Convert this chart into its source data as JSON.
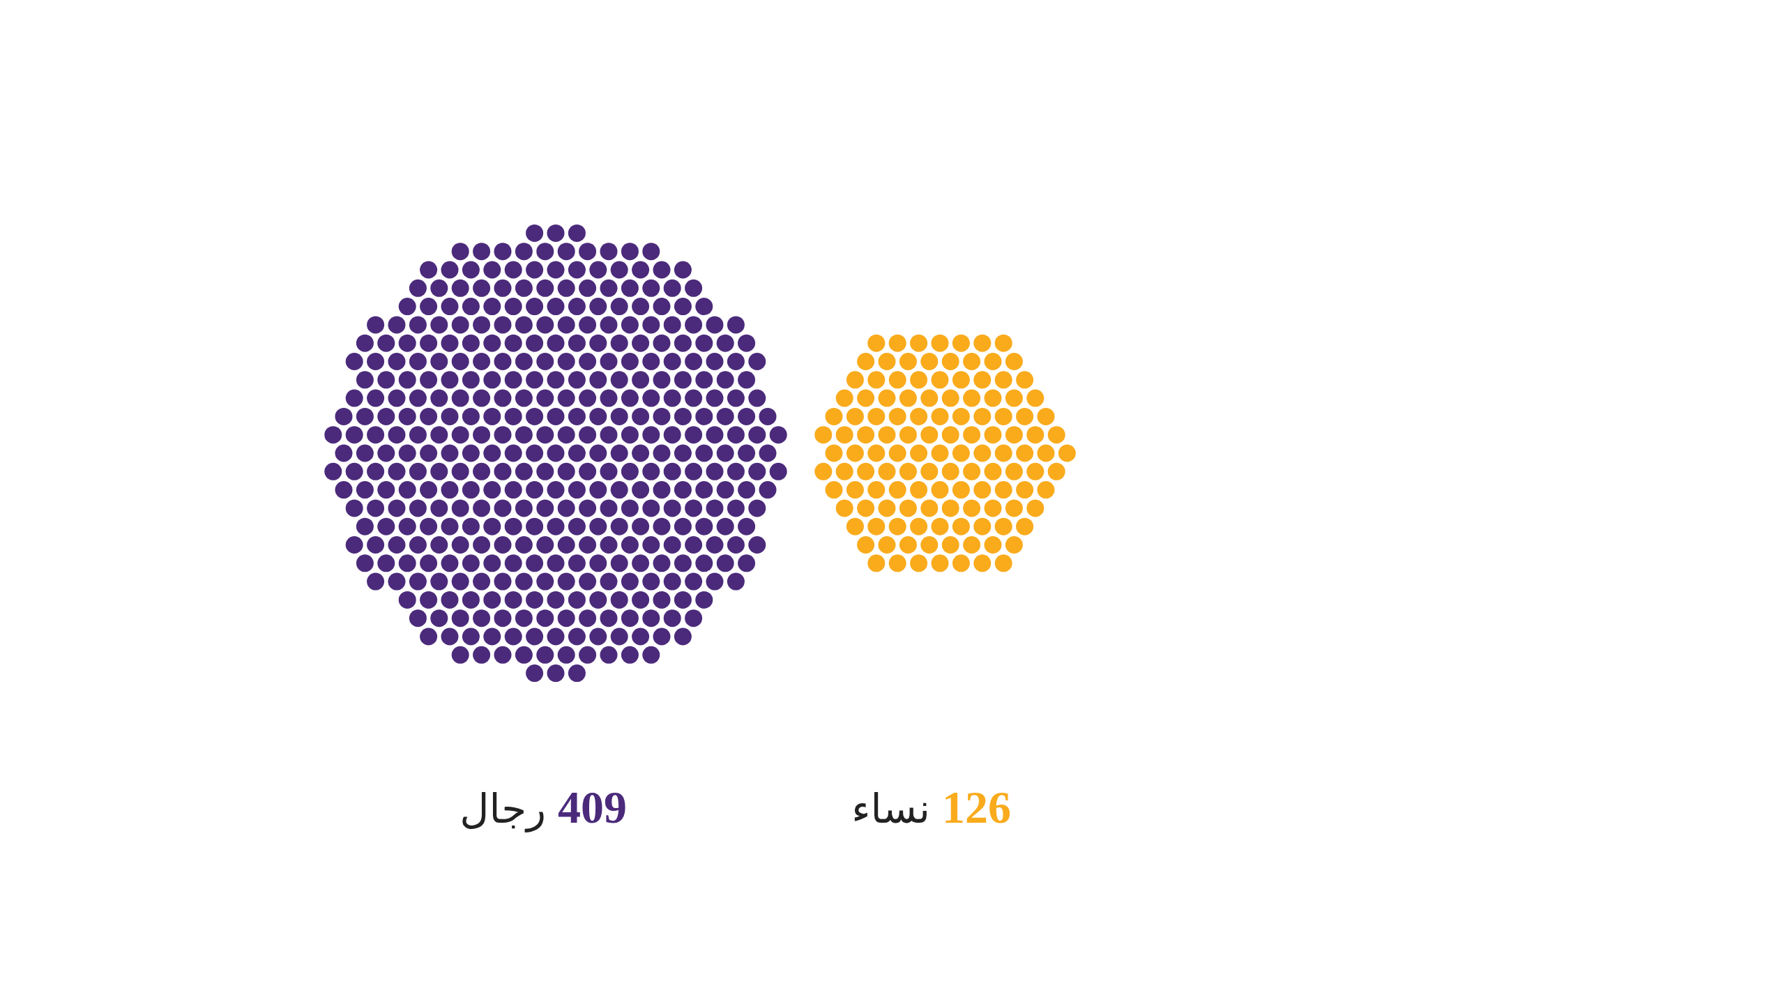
{
  "chart_data": {
    "type": "other",
    "categories": [
      "رجال",
      "نساء"
    ],
    "values": [
      409,
      126
    ],
    "colors": [
      "#4b2a7b",
      "#f9ab1c"
    ],
    "data_labels": true
  }
}
